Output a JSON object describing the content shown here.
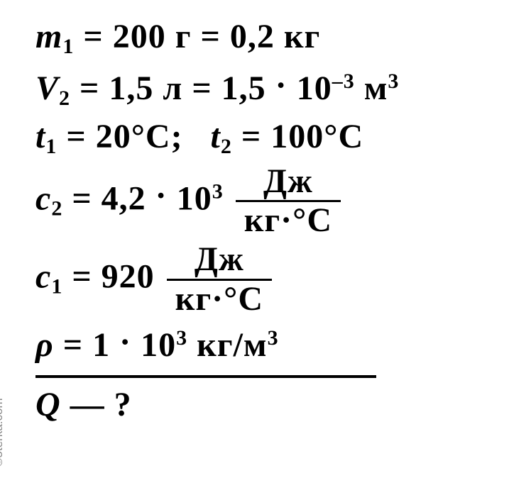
{
  "given": {
    "line1": {
      "var": "m",
      "sub": "1",
      "val1": "200",
      "unit1": "г",
      "val2": "0,2",
      "unit2": "кг"
    },
    "line2": {
      "var": "V",
      "sub": "2",
      "val1": "1,5",
      "unit1": "л",
      "val2": "1,5",
      "mult": "·",
      "exp_base": "10",
      "exp": "–3",
      "unit2_base": "м",
      "unit2_exp": "3"
    },
    "line3": {
      "var1": "t",
      "sub1": "1",
      "val1": "20",
      "deg": "°C",
      "sep": ";",
      "var2": "t",
      "sub2": "2",
      "val2": "100"
    },
    "line4": {
      "var": "c",
      "sub": "2",
      "val": "4,2",
      "mult": "·",
      "exp_base": "10",
      "exp": "3",
      "frac_num": "Дж",
      "frac_den": "кг·°C"
    },
    "line5": {
      "var": "c",
      "sub": "1",
      "val": "920",
      "frac_num": "Дж",
      "frac_den": "кг·°C"
    },
    "line6": {
      "var": "ρ",
      "val": "1",
      "mult": "·",
      "exp_base": "10",
      "exp": "3",
      "unit": "кг/м",
      "unit_exp": "3"
    }
  },
  "find": {
    "var": "Q",
    "dash": "—",
    "mark": "?"
  },
  "watermark": "©5terka.com",
  "style": {
    "background": "#ffffff",
    "text_color": "#000000",
    "font_size_main": 48,
    "font_size_sub": 30,
    "divider_width": 480,
    "divider_thickness": 4
  }
}
